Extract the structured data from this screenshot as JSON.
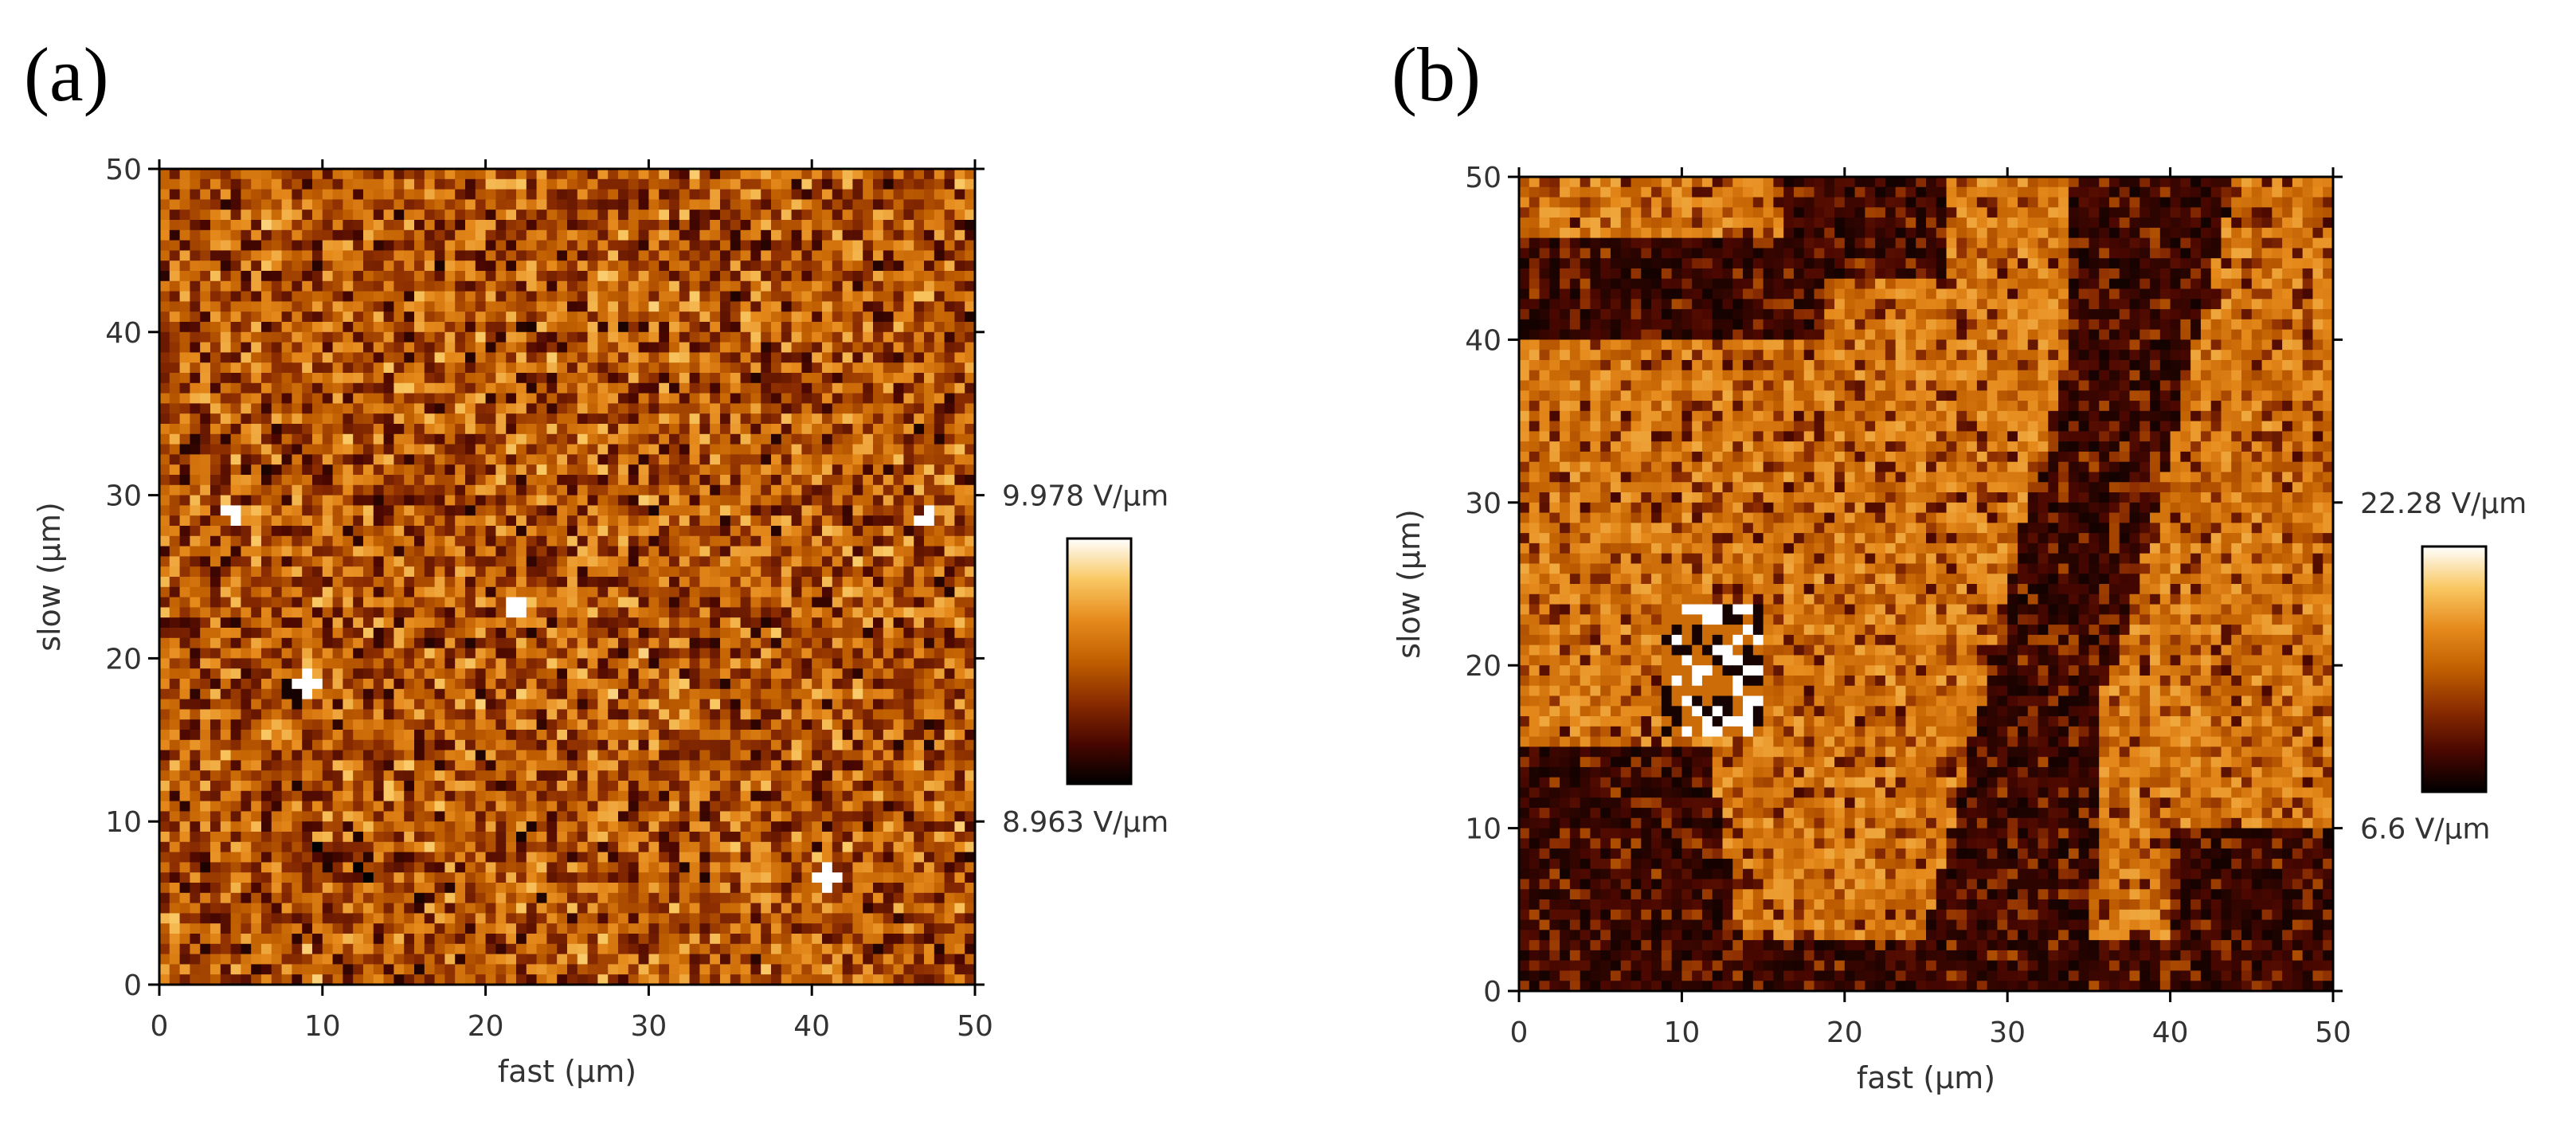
{
  "chart_data": [
    {
      "type": "heatmap",
      "panel_label": "(a)",
      "xlabel": "fast (µm)",
      "ylabel": "slow (µm)",
      "xlim": [
        0,
        50
      ],
      "ylim": [
        0,
        50
      ],
      "xticks": [
        "0",
        "10",
        "20",
        "30",
        "40",
        "50"
      ],
      "yticks": [
        "0",
        "10",
        "20",
        "30",
        "40",
        "50"
      ],
      "colorbar": {
        "max_label": "9.978 V/µm",
        "min_label": "8.963 V/µm",
        "max": 9.978,
        "min": 8.963,
        "unit": "V/µm"
      },
      "colormap": [
        "#000000",
        "#4a0700",
        "#8a2c00",
        "#c05f00",
        "#e68a1c",
        "#f9c863",
        "#ffffff"
      ],
      "pattern": "uniform granular noise; bright spots near (4.5,29), (9,18.5), (47,28.5), (41,6.5), (22,23)"
    },
    {
      "type": "heatmap",
      "panel_label": "(b)",
      "xlabel": "fast (µm)",
      "ylabel": "slow (µm)",
      "xlim": [
        0,
        50
      ],
      "ylim": [
        0,
        50
      ],
      "xticks": [
        "0",
        "10",
        "20",
        "30",
        "40",
        "50"
      ],
      "yticks": [
        "0",
        "10",
        "20",
        "30",
        "40",
        "50"
      ],
      "colorbar": {
        "max_label": "22.28 V/µm",
        "min_label": "6.6 V/µm",
        "max": 22.28,
        "min": 6.6,
        "unit": "V/µm"
      },
      "colormap": [
        "#000000",
        "#4a0700",
        "#8a2c00",
        "#c05f00",
        "#e68a1c",
        "#f9c863",
        "#ffffff"
      ],
      "pattern": "domain structure: dark band at upper-left, dark diagonal stripe from (40,50) to (25,0), dark lower-left region; bright cluster near (12,19)"
    }
  ]
}
